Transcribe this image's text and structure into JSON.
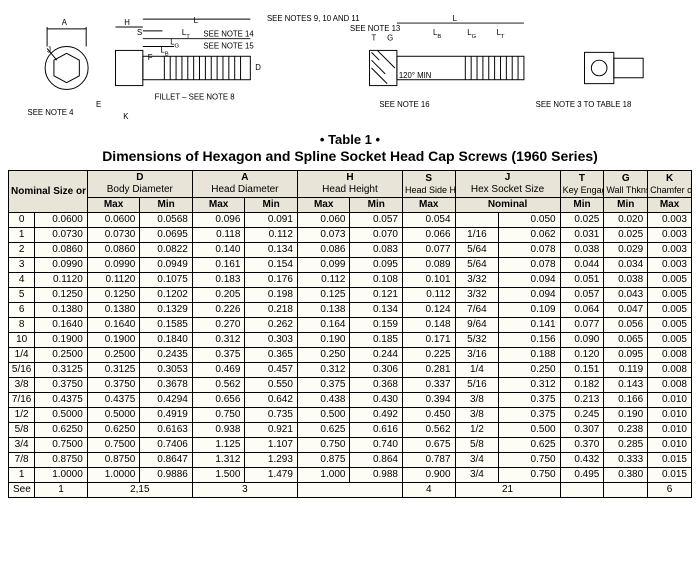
{
  "caption_top": "• Table 1 •",
  "caption_sub": "Dimensions of Hexagon and Spline Socket Head Cap Screws (1960 Series)",
  "diagram": {
    "labels": [
      "A",
      "H",
      "S",
      "L",
      "L_T",
      "L_G",
      "L_B",
      "F",
      "J",
      "E",
      "K",
      "T",
      "G",
      "D"
    ],
    "notes": [
      "SEE NOTES 9, 10 AND 11",
      "SEE NOTE 13",
      "SEE NOTE 14",
      "SEE NOTE 15",
      "FILLET – SEE NOTE 8",
      "SEE NOTE 16",
      "SEE NOTE 3 TO TABLE 18",
      "SEE NOTE 4",
      "120° MIN"
    ]
  },
  "headers": {
    "nominal": "Nominal Size or Basic Screw Diameter",
    "D": "D Body Diameter",
    "A": "A Head Diameter",
    "H": "H Head Height",
    "S": "S Head Side Height",
    "J": "J Hex Socket Size",
    "T": "T Key Engagmt",
    "G": "G Wall Thkns",
    "K": "K Chamfer or Radius",
    "Max": "Max",
    "Min": "Min",
    "Nominal": "Nominal"
  },
  "col_widths_pct": [
    3,
    6,
    6,
    6,
    6,
    6,
    6,
    6,
    6,
    5,
    7,
    5,
    5,
    5
  ],
  "rows": [
    {
      "idx": "0",
      "basic": "0.0600",
      "Dmax": "0.0600",
      "Dmin": "0.0568",
      "Amax": "0.096",
      "Amin": "0.091",
      "Hmax": "0.060",
      "Hmin": "0.057",
      "S": "0.054",
      "Jf": "",
      "Jn": "0.050",
      "T": "0.025",
      "G": "0.020",
      "K": "0.003"
    },
    {
      "idx": "1",
      "basic": "0.0730",
      "Dmax": "0.0730",
      "Dmin": "0.0695",
      "Amax": "0.118",
      "Amin": "0.112",
      "Hmax": "0.073",
      "Hmin": "0.070",
      "S": "0.066",
      "Jf": "1/16",
      "Jn": "0.062",
      "T": "0.031",
      "G": "0.025",
      "K": "0.003"
    },
    {
      "idx": "2",
      "basic": "0.0860",
      "Dmax": "0.0860",
      "Dmin": "0.0822",
      "Amax": "0.140",
      "Amin": "0.134",
      "Hmax": "0.086",
      "Hmin": "0.083",
      "S": "0.077",
      "Jf": "5/64",
      "Jn": "0.078",
      "T": "0.038",
      "G": "0.029",
      "K": "0.003"
    },
    {
      "idx": "3",
      "basic": "0.0990",
      "Dmax": "0.0990",
      "Dmin": "0.0949",
      "Amax": "0.161",
      "Amin": "0.154",
      "Hmax": "0.099",
      "Hmin": "0.095",
      "S": "0.089",
      "Jf": "5/64",
      "Jn": "0.078",
      "T": "0.044",
      "G": "0.034",
      "K": "0.003"
    },
    {
      "idx": "4",
      "basic": "0.1120",
      "Dmax": "0.1120",
      "Dmin": "0.1075",
      "Amax": "0.183",
      "Amin": "0.176",
      "Hmax": "0.112",
      "Hmin": "0.108",
      "S": "0.101",
      "Jf": "3/32",
      "Jn": "0.094",
      "T": "0.051",
      "G": "0.038",
      "K": "0.005"
    },
    {
      "idx": "5",
      "basic": "0.1250",
      "Dmax": "0.1250",
      "Dmin": "0.1202",
      "Amax": "0.205",
      "Amin": "0.198",
      "Hmax": "0.125",
      "Hmin": "0.121",
      "S": "0.112",
      "Jf": "3/32",
      "Jn": "0.094",
      "T": "0.057",
      "G": "0.043",
      "K": "0.005"
    },
    {
      "idx": "6",
      "basic": "0.1380",
      "Dmax": "0.1380",
      "Dmin": "0.1329",
      "Amax": "0.226",
      "Amin": "0.218",
      "Hmax": "0.138",
      "Hmin": "0.134",
      "S": "0.124",
      "Jf": "7/64",
      "Jn": "0.109",
      "T": "0.064",
      "G": "0.047",
      "K": "0.005"
    },
    {
      "idx": "8",
      "basic": "0.1640",
      "Dmax": "0.1640",
      "Dmin": "0.1585",
      "Amax": "0.270",
      "Amin": "0.262",
      "Hmax": "0.164",
      "Hmin": "0.159",
      "S": "0.148",
      "Jf": "9/64",
      "Jn": "0.141",
      "T": "0.077",
      "G": "0.056",
      "K": "0.005"
    },
    {
      "idx": "10",
      "basic": "0.1900",
      "Dmax": "0.1900",
      "Dmin": "0.1840",
      "Amax": "0.312",
      "Amin": "0.303",
      "Hmax": "0.190",
      "Hmin": "0.185",
      "S": "0.171",
      "Jf": "5/32",
      "Jn": "0.156",
      "T": "0.090",
      "G": "0.065",
      "K": "0.005"
    },
    {
      "idx": "1/4",
      "basic": "0.2500",
      "Dmax": "0.2500",
      "Dmin": "0.2435",
      "Amax": "0.375",
      "Amin": "0.365",
      "Hmax": "0.250",
      "Hmin": "0.244",
      "S": "0.225",
      "Jf": "3/16",
      "Jn": "0.188",
      "T": "0.120",
      "G": "0.095",
      "K": "0.008"
    },
    {
      "idx": "5/16",
      "basic": "0.3125",
      "Dmax": "0.3125",
      "Dmin": "0.3053",
      "Amax": "0.469",
      "Amin": "0.457",
      "Hmax": "0.312",
      "Hmin": "0.306",
      "S": "0.281",
      "Jf": "1/4",
      "Jn": "0.250",
      "T": "0.151",
      "G": "0.119",
      "K": "0.008"
    },
    {
      "idx": "3/8",
      "basic": "0.3750",
      "Dmax": "0.3750",
      "Dmin": "0.3678",
      "Amax": "0.562",
      "Amin": "0.550",
      "Hmax": "0.375",
      "Hmin": "0.368",
      "S": "0.337",
      "Jf": "5/16",
      "Jn": "0.312",
      "T": "0.182",
      "G": "0.143",
      "K": "0.008"
    },
    {
      "idx": "7/16",
      "basic": "0.4375",
      "Dmax": "0.4375",
      "Dmin": "0.4294",
      "Amax": "0.656",
      "Amin": "0.642",
      "Hmax": "0.438",
      "Hmin": "0.430",
      "S": "0.394",
      "Jf": "3/8",
      "Jn": "0.375",
      "T": "0.213",
      "G": "0.166",
      "K": "0.010"
    },
    {
      "idx": "1/2",
      "basic": "0.5000",
      "Dmax": "0.5000",
      "Dmin": "0.4919",
      "Amax": "0.750",
      "Amin": "0.735",
      "Hmax": "0.500",
      "Hmin": "0.492",
      "S": "0.450",
      "Jf": "3/8",
      "Jn": "0.375",
      "T": "0.245",
      "G": "0.190",
      "K": "0.010"
    },
    {
      "idx": "5/8",
      "basic": "0.6250",
      "Dmax": "0.6250",
      "Dmin": "0.6163",
      "Amax": "0.938",
      "Amin": "0.921",
      "Hmax": "0.625",
      "Hmin": "0.616",
      "S": "0.562",
      "Jf": "1/2",
      "Jn": "0.500",
      "T": "0.307",
      "G": "0.238",
      "K": "0.010"
    },
    {
      "idx": "3/4",
      "basic": "0.7500",
      "Dmax": "0.7500",
      "Dmin": "0.7406",
      "Amax": "1.125",
      "Amin": "1.107",
      "Hmax": "0.750",
      "Hmin": "0.740",
      "S": "0.675",
      "Jf": "5/8",
      "Jn": "0.625",
      "T": "0.370",
      "G": "0.285",
      "K": "0.010"
    },
    {
      "idx": "7/8",
      "basic": "0.8750",
      "Dmax": "0.8750",
      "Dmin": "0.8647",
      "Amax": "1.312",
      "Amin": "1.293",
      "Hmax": "0.875",
      "Hmin": "0.864",
      "S": "0.787",
      "Jf": "3/4",
      "Jn": "0.750",
      "T": "0.432",
      "G": "0.333",
      "K": "0.015"
    },
    {
      "idx": "1",
      "basic": "1.0000",
      "Dmax": "1.0000",
      "Dmin": "0.9886",
      "Amax": "1.500",
      "Amin": "1.479",
      "Hmax": "1.000",
      "Hmin": "0.988",
      "S": "0.900",
      "Jf": "3/4",
      "Jn": "0.750",
      "T": "0.495",
      "G": "0.380",
      "K": "0.015"
    }
  ],
  "see_notes": {
    "label": "See Notes",
    "nominal": "1",
    "D": "2,15",
    "A": "3",
    "H": "",
    "S": "4",
    "J": "21",
    "T": "",
    "G": "",
    "K": "6"
  }
}
